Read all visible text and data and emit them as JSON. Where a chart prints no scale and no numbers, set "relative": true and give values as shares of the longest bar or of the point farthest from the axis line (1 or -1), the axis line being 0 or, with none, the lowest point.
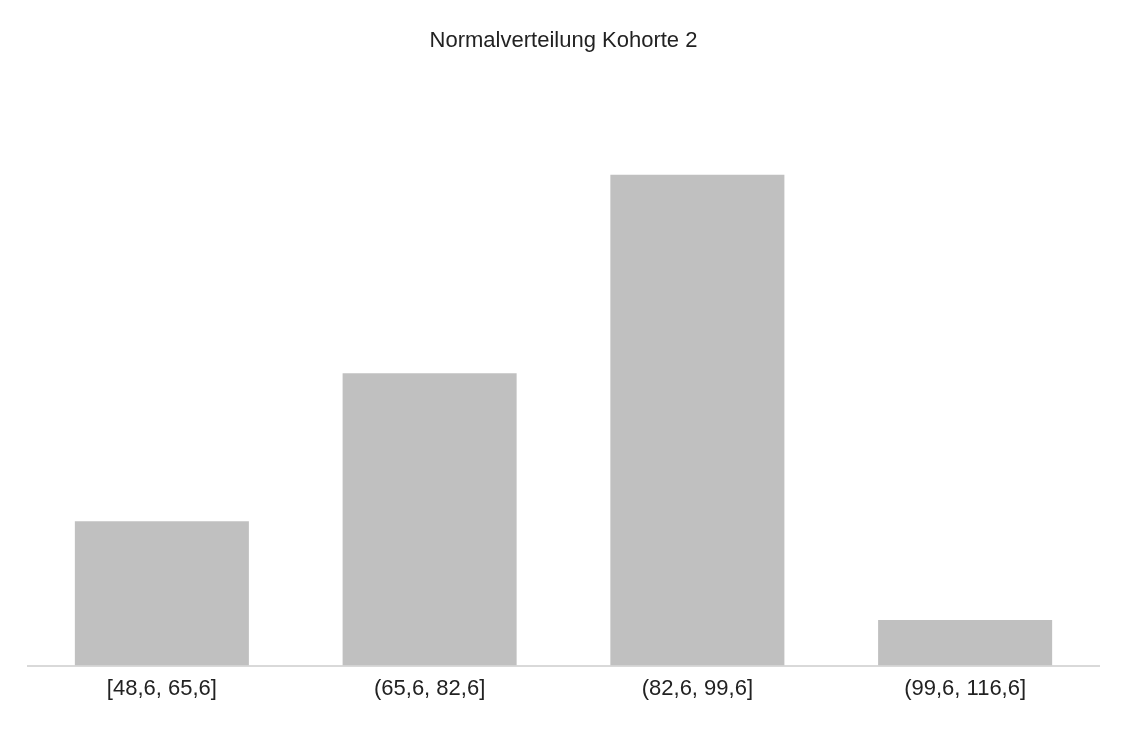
{
  "chart_data": {
    "type": "bar",
    "title": "Normalverteilung Kohorte 2",
    "categories": [
      "[48,6, 65,6]",
      "(65,6, 82,6]",
      "(82,6, 99,6]",
      "(99,6, 116,6]"
    ],
    "values": [
      0.294,
      0.595,
      1,
      0.093
    ],
    "color": "#c0c0c0",
    "relative": true,
    "grid": false,
    "legend": false
  }
}
